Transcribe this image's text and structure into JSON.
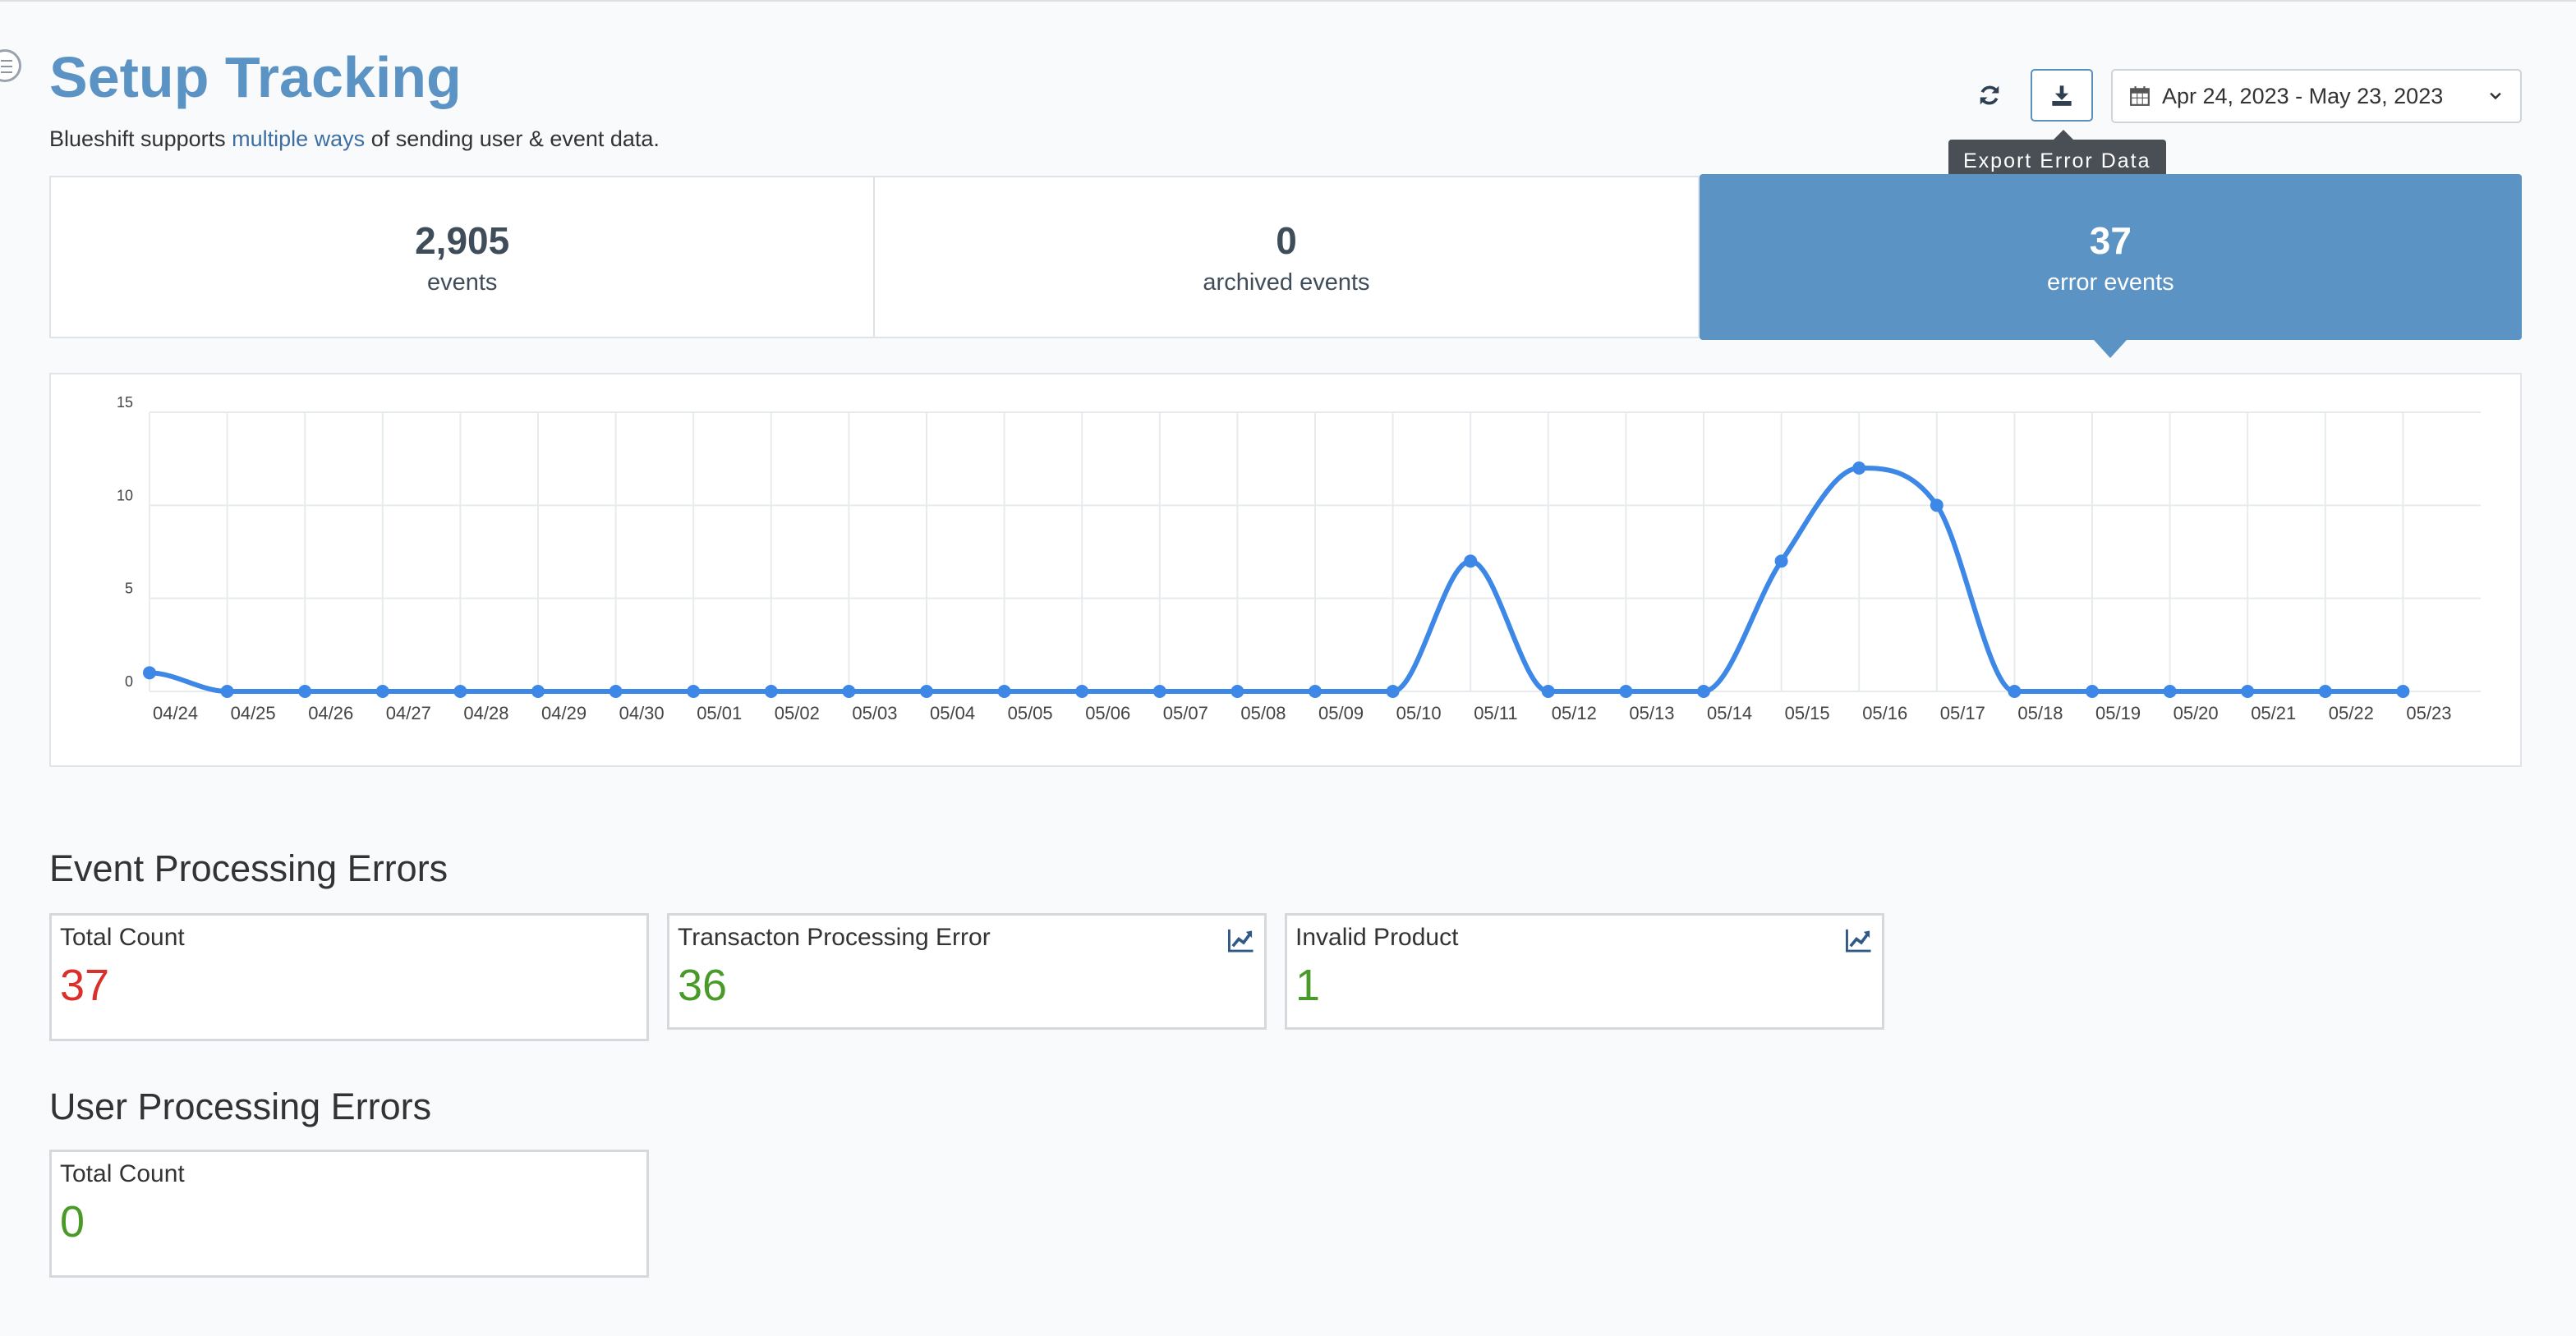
{
  "header": {
    "title": "Setup Tracking",
    "subtitle_before": "Blueshift supports ",
    "subtitle_link": "multiple ways",
    "subtitle_after": " of sending user & event data."
  },
  "toolbar": {
    "refresh_icon": "refresh-icon",
    "export_icon": "download-icon",
    "export_tooltip": "Export Error Data",
    "date_range": "Apr 24, 2023 - May 23, 2023"
  },
  "stats": [
    {
      "value": "2,905",
      "label": "events",
      "active": false
    },
    {
      "value": "0",
      "label": "archived events",
      "active": false
    },
    {
      "value": "37",
      "label": "error events",
      "active": true
    }
  ],
  "chart_data": {
    "type": "line",
    "title": "",
    "xlabel": "",
    "ylabel": "",
    "ylim": [
      0,
      15
    ],
    "yticks": [
      "0",
      "5",
      "10",
      "15"
    ],
    "grid": true,
    "color": "#3d87e6",
    "categories": [
      "04/24",
      "04/25",
      "04/26",
      "04/27",
      "04/28",
      "04/29",
      "04/30",
      "05/01",
      "05/02",
      "05/03",
      "05/04",
      "05/05",
      "05/06",
      "05/07",
      "05/08",
      "05/09",
      "05/10",
      "05/11",
      "05/12",
      "05/13",
      "05/14",
      "05/15",
      "05/16",
      "05/17",
      "05/18",
      "05/19",
      "05/20",
      "05/21",
      "05/22",
      "05/23"
    ],
    "values": [
      1,
      0,
      0,
      0,
      0,
      0,
      0,
      0,
      0,
      0,
      0,
      0,
      0,
      0,
      0,
      0,
      0,
      7,
      0,
      0,
      0,
      7,
      12,
      10,
      0,
      0,
      0,
      0,
      0,
      0
    ]
  },
  "event_errors": {
    "title": "Event Processing Errors",
    "cards": [
      {
        "title": "Total Count",
        "count": "37",
        "color": "#d9302c",
        "trend": false
      },
      {
        "title": "Transacton Processing Error",
        "count": "36",
        "color": "#4a9a2a",
        "trend": true
      },
      {
        "title": "Invalid Product",
        "count": "1",
        "color": "#4a9a2a",
        "trend": true
      }
    ]
  },
  "user_errors": {
    "title": "User Processing Errors",
    "cards": [
      {
        "title": "Total Count",
        "count": "0",
        "color": "#4a9a2a",
        "trend": false
      }
    ]
  }
}
